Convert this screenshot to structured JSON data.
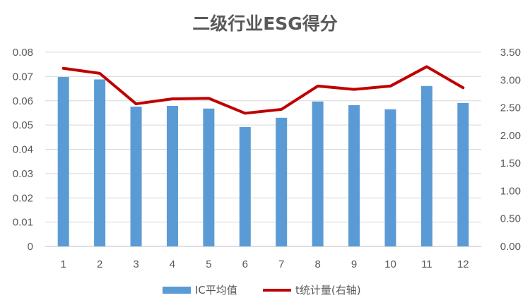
{
  "chart_data": {
    "type": "bar",
    "title": "二级行业ESG得分",
    "categories": [
      "1",
      "2",
      "3",
      "4",
      "5",
      "6",
      "7",
      "8",
      "9",
      "10",
      "11",
      "12"
    ],
    "series": [
      {
        "name": "IC平均值",
        "type": "bar",
        "axis": "left",
        "color": "#5B9BD5",
        "values": [
          0.0698,
          0.0688,
          0.0576,
          0.0579,
          0.0568,
          0.0492,
          0.053,
          0.0597,
          0.0582,
          0.0565,
          0.0661,
          0.0591
        ]
      },
      {
        "name": "t统计量(右轴)",
        "type": "line",
        "axis": "right",
        "color": "#C00000",
        "values": [
          3.21,
          3.12,
          2.57,
          2.66,
          2.67,
          2.4,
          2.47,
          2.89,
          2.83,
          2.89,
          3.24,
          2.86
        ]
      }
    ],
    "y_left": {
      "ylim": [
        0,
        0.08
      ],
      "ticks": [
        "0",
        "0.01",
        "0.02",
        "0.03",
        "0.04",
        "0.05",
        "0.06",
        "0.07",
        "0.08"
      ]
    },
    "y_right": {
      "ylim": [
        0,
        3.5
      ],
      "ticks": [
        "0.00",
        "0.50",
        "1.00",
        "1.50",
        "2.00",
        "2.50",
        "3.00",
        "3.50"
      ]
    },
    "grid": true,
    "legend_position": "bottom"
  }
}
